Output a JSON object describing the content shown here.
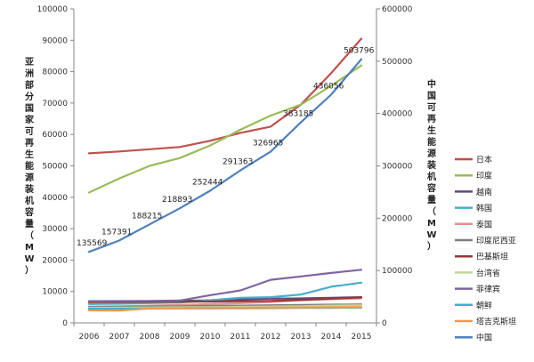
{
  "chart_data": {
    "type": "line",
    "categories": [
      "2006",
      "2007",
      "2008",
      "2009",
      "2010",
      "2011",
      "2012",
      "2013",
      "2014",
      "2015"
    ],
    "y_left": {
      "label": "亚洲部分国家可再生能源装机容量（MW）",
      "range": [
        0,
        100000
      ],
      "ticks": [
        "0",
        "10000",
        "20000",
        "30000",
        "40000",
        "50000",
        "60000",
        "70000",
        "80000",
        "90000",
        "100000"
      ]
    },
    "y_right": {
      "label": "中国可再生能源装机容量（MW）",
      "range": [
        0,
        600000
      ],
      "ticks": [
        "0",
        "100000",
        "200000",
        "300000",
        "400000",
        "500000",
        "600000"
      ]
    },
    "grid": false,
    "legend_position": "right",
    "series": [
      {
        "name": "日本",
        "color": "#c0504d",
        "axis": "left",
        "values": [
          54000,
          54600,
          55300,
          56000,
          58000,
          60500,
          62500,
          69500,
          79500,
          90500
        ]
      },
      {
        "name": "印度",
        "color": "#9bbb59",
        "axis": "left",
        "values": [
          41500,
          46000,
          50000,
          52500,
          56500,
          61500,
          66000,
          69500,
          75500,
          82000
        ]
      },
      {
        "name": "越南",
        "color": "#604a7b",
        "axis": "left",
        "values": [
          6700,
          6800,
          6900,
          7000,
          7200,
          7500,
          7700,
          7800,
          8000,
          8200
        ]
      },
      {
        "name": "韩国",
        "color": "#4bacc6",
        "axis": "left",
        "values": [
          6000,
          6100,
          6300,
          6500,
          7200,
          8000,
          8200,
          9000,
          11500,
          12800
        ]
      },
      {
        "name": "泰国",
        "color": "#d99694",
        "axis": "left",
        "values": [
          5200,
          5300,
          5500,
          5700,
          6000,
          6300,
          6600,
          7200,
          7500,
          7800
        ]
      },
      {
        "name": "印度尼西亚",
        "color": "#7f7f7f",
        "axis": "left",
        "values": [
          5000,
          5100,
          5200,
          5300,
          5400,
          5500,
          5600,
          5700,
          5800,
          5900
        ]
      },
      {
        "name": "巴基斯坦",
        "color": "#953735",
        "axis": "left",
        "values": [
          6600,
          6650,
          6700,
          6750,
          6800,
          6900,
          7000,
          7300,
          7700,
          8100
        ]
      },
      {
        "name": "台湾省",
        "color": "#c3d69b",
        "axis": "left",
        "values": [
          4800,
          4850,
          4900,
          4950,
          5000,
          5100,
          5200,
          5300,
          5500,
          5600
        ]
      },
      {
        "name": "菲律宾",
        "color": "#8064a2",
        "axis": "left",
        "values": [
          6900,
          6950,
          7000,
          7100,
          8800,
          10300,
          13700,
          14800,
          15900,
          16900
        ]
      },
      {
        "name": "朝鲜",
        "color": "#31b6d0",
        "axis": "left",
        "values": [
          4500,
          4500,
          4550,
          4600,
          4600,
          4650,
          4700,
          4750,
          4800,
          4850
        ]
      },
      {
        "name": "塔吉克斯坦",
        "color": "#f79646",
        "axis": "left",
        "values": [
          4000,
          3900,
          4600,
          4700,
          4750,
          4800,
          4850,
          4900,
          4950,
          5000
        ]
      },
      {
        "name": "中国",
        "color": "#4f81bd",
        "axis": "right",
        "values": [
          135569,
          157391,
          188215,
          218893,
          252444,
          291363,
          326965,
          383185,
          436056,
          503796
        ],
        "data_labels": [
          "135569",
          "157391",
          "188215",
          "218893",
          "252444",
          "291363",
          "326965",
          "383185",
          "436056",
          "503796"
        ]
      }
    ]
  }
}
